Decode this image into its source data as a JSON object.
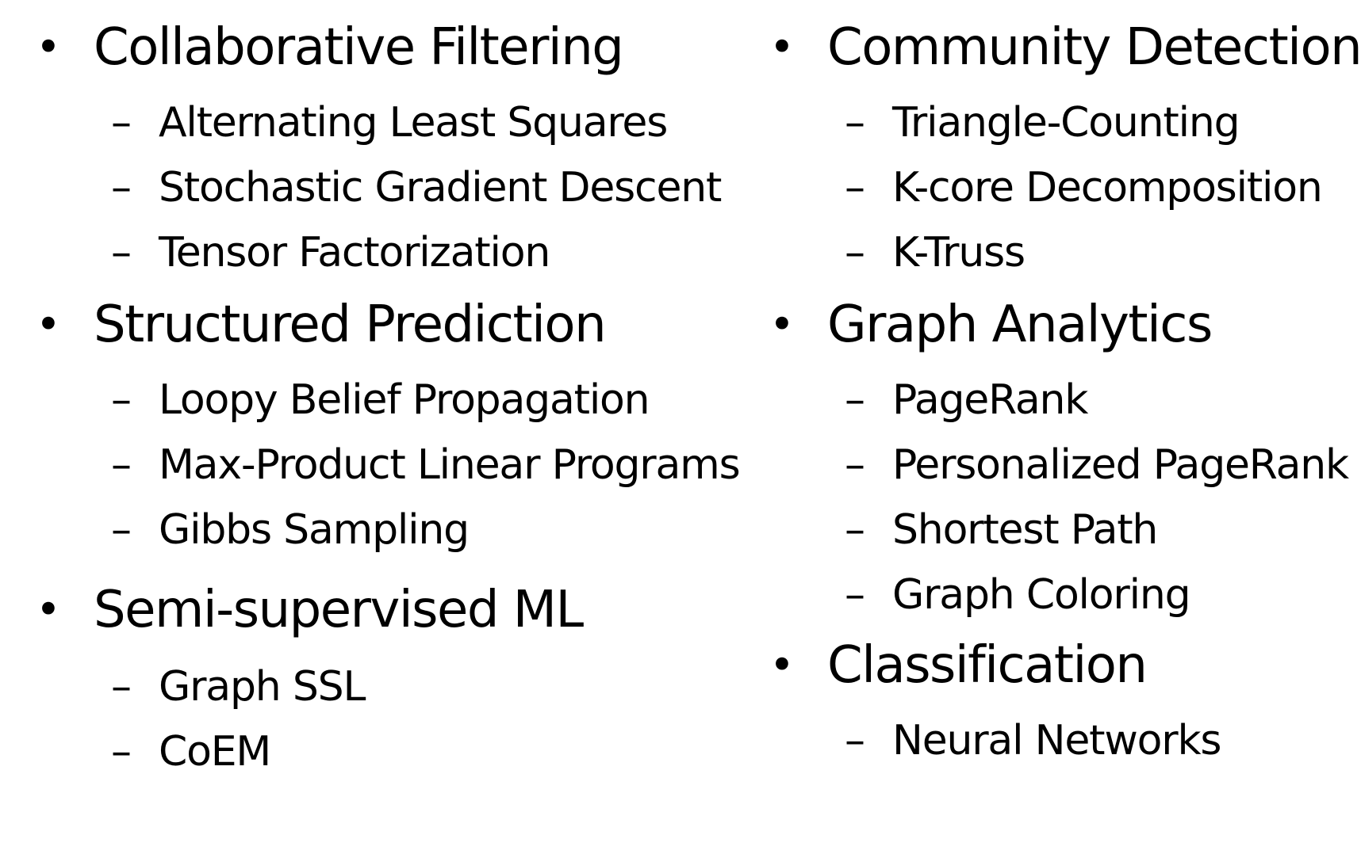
{
  "left_column": [
    {
      "title": "Collaborative Filtering",
      "items": [
        "Alternating Least Squares",
        "Stochastic Gradient Descent",
        "Tensor Factorization"
      ]
    },
    {
      "title": "Structured Prediction",
      "items": [
        "Loopy Belief Propagation",
        "Max-Product Linear Programs",
        "Gibbs Sampling"
      ]
    },
    {
      "title": "Semi-supervised ML",
      "items": [
        "Graph SSL",
        "CoEM"
      ]
    }
  ],
  "right_column": [
    {
      "title": "Community Detection",
      "items": [
        "Triangle-Counting",
        "K-core Decomposition",
        "K-Truss"
      ]
    },
    {
      "title": "Graph Analytics",
      "items": [
        "PageRank",
        "Personalized PageRank",
        "Shortest Path",
        "Graph Coloring"
      ]
    },
    {
      "title": "Classification",
      "items": [
        "Neural Networks"
      ]
    }
  ],
  "symbols": {
    "bullet": "•",
    "dash": "–"
  }
}
